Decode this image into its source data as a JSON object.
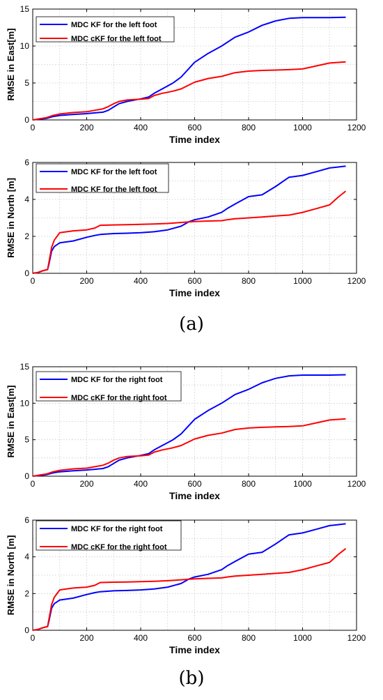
{
  "figure": {
    "panel_labels": [
      "(a)",
      "(b)"
    ]
  },
  "colors": {
    "series_blue": "#0000ff",
    "series_red": "#ff0000",
    "grid": "#c8c8c8",
    "axis": "#000000"
  },
  "chart_data": [
    {
      "type": "line",
      "panel": "(a)",
      "xlabel": "Time index",
      "ylabel": "RMSE in East[m]",
      "xlim": [
        0,
        1200
      ],
      "ylim": [
        0,
        15
      ],
      "xticks": [
        0,
        200,
        400,
        600,
        800,
        1000,
        1200
      ],
      "yticks": [
        0,
        5,
        10,
        15
      ],
      "grid": true,
      "legend_position": "top-left",
      "series": [
        {
          "name": "MDC KF for the left foot",
          "color": "#0000ff",
          "x": [
            0,
            25,
            50,
            75,
            100,
            150,
            200,
            230,
            260,
            280,
            300,
            320,
            350,
            400,
            430,
            450,
            480,
            500,
            520,
            550,
            600,
            650,
            700,
            750,
            800,
            850,
            900,
            950,
            1000,
            1050,
            1100,
            1160
          ],
          "y": [
            0,
            0.1,
            0.2,
            0.45,
            0.6,
            0.75,
            0.85,
            0.95,
            1.05,
            1.3,
            1.75,
            2.2,
            2.5,
            2.85,
            3.1,
            3.6,
            4.2,
            4.6,
            5.0,
            5.8,
            7.8,
            9.0,
            10.0,
            11.2,
            11.9,
            12.8,
            13.4,
            13.75,
            13.85,
            13.85,
            13.85,
            13.9
          ]
        },
        {
          "name": "MDC cKF for the left foot",
          "color": "#ff0000",
          "x": [
            0,
            25,
            50,
            75,
            100,
            150,
            200,
            230,
            260,
            280,
            300,
            320,
            350,
            400,
            430,
            450,
            480,
            500,
            520,
            550,
            600,
            650,
            700,
            750,
            800,
            850,
            900,
            950,
            1000,
            1050,
            1100,
            1160
          ],
          "y": [
            0,
            0.15,
            0.3,
            0.6,
            0.8,
            1.0,
            1.1,
            1.3,
            1.5,
            1.8,
            2.2,
            2.5,
            2.7,
            2.8,
            2.9,
            3.3,
            3.6,
            3.75,
            3.9,
            4.2,
            5.1,
            5.6,
            5.9,
            6.4,
            6.6,
            6.7,
            6.75,
            6.8,
            6.9,
            7.3,
            7.7,
            7.85
          ]
        }
      ]
    },
    {
      "type": "line",
      "panel": "(a)",
      "xlabel": "Time index",
      "ylabel": "RMSE in North [m]",
      "xlim": [
        0,
        1200
      ],
      "ylim": [
        0,
        6
      ],
      "xticks": [
        0,
        200,
        400,
        600,
        800,
        1000,
        1200
      ],
      "yticks": [
        0,
        2,
        4,
        6
      ],
      "grid": true,
      "legend_position": "top-left",
      "series": [
        {
          "name": "MDC KF for the left foot",
          "color": "#0000ff",
          "x": [
            0,
            20,
            40,
            55,
            60,
            70,
            80,
            100,
            150,
            200,
            230,
            250,
            300,
            350,
            400,
            450,
            500,
            550,
            580,
            600,
            650,
            700,
            720,
            750,
            800,
            850,
            900,
            950,
            1000,
            1050,
            1100,
            1130,
            1160
          ],
          "y": [
            0,
            0.05,
            0.15,
            0.2,
            0.5,
            1.2,
            1.45,
            1.65,
            1.75,
            1.95,
            2.05,
            2.1,
            2.15,
            2.17,
            2.2,
            2.25,
            2.35,
            2.55,
            2.8,
            2.9,
            3.05,
            3.3,
            3.5,
            3.75,
            4.15,
            4.25,
            4.7,
            5.2,
            5.3,
            5.5,
            5.7,
            5.75,
            5.8
          ]
        },
        {
          "name": "MDC KF for the left foot",
          "color": "#ff0000",
          "x": [
            0,
            20,
            40,
            55,
            60,
            70,
            80,
            100,
            150,
            200,
            230,
            250,
            300,
            350,
            400,
            450,
            500,
            550,
            580,
            600,
            650,
            700,
            720,
            750,
            800,
            850,
            900,
            950,
            1000,
            1050,
            1100,
            1130,
            1160
          ],
          "y": [
            0,
            0.05,
            0.15,
            0.2,
            0.6,
            1.4,
            1.8,
            2.2,
            2.3,
            2.35,
            2.45,
            2.6,
            2.62,
            2.63,
            2.65,
            2.67,
            2.7,
            2.75,
            2.78,
            2.8,
            2.83,
            2.85,
            2.9,
            2.95,
            3.0,
            3.05,
            3.1,
            3.15,
            3.3,
            3.5,
            3.7,
            4.1,
            4.45
          ]
        }
      ]
    },
    {
      "type": "line",
      "panel": "(b)",
      "xlabel": "Time index",
      "ylabel": "RMSE in East[m]",
      "xlim": [
        0,
        1200
      ],
      "ylim": [
        0,
        15
      ],
      "xticks": [
        0,
        200,
        400,
        600,
        800,
        1000,
        1200
      ],
      "yticks": [
        0,
        5,
        10,
        15
      ],
      "grid": true,
      "legend_position": "top-left",
      "series": [
        {
          "name": "MDC KF for the right foot",
          "color": "#0000ff",
          "x": [
            0,
            25,
            50,
            75,
            100,
            150,
            200,
            230,
            260,
            280,
            300,
            320,
            350,
            400,
            430,
            450,
            480,
            500,
            520,
            550,
            600,
            650,
            700,
            750,
            800,
            850,
            900,
            950,
            1000,
            1050,
            1100,
            1160
          ],
          "y": [
            0,
            0.1,
            0.2,
            0.45,
            0.6,
            0.75,
            0.85,
            0.95,
            1.05,
            1.3,
            1.75,
            2.2,
            2.5,
            2.85,
            3.1,
            3.6,
            4.2,
            4.6,
            5.0,
            5.8,
            7.8,
            9.0,
            10.0,
            11.2,
            11.9,
            12.8,
            13.4,
            13.75,
            13.85,
            13.85,
            13.85,
            13.9
          ]
        },
        {
          "name": "MDC cKF for the right foot",
          "color": "#ff0000",
          "x": [
            0,
            25,
            50,
            75,
            100,
            150,
            200,
            230,
            260,
            280,
            300,
            320,
            350,
            400,
            430,
            450,
            480,
            500,
            520,
            550,
            600,
            650,
            700,
            750,
            800,
            850,
            900,
            950,
            1000,
            1050,
            1100,
            1160
          ],
          "y": [
            0,
            0.15,
            0.3,
            0.6,
            0.8,
            1.0,
            1.1,
            1.3,
            1.5,
            1.8,
            2.2,
            2.5,
            2.7,
            2.8,
            2.9,
            3.3,
            3.6,
            3.75,
            3.9,
            4.2,
            5.1,
            5.6,
            5.9,
            6.4,
            6.6,
            6.7,
            6.75,
            6.8,
            6.9,
            7.3,
            7.7,
            7.85
          ]
        }
      ]
    },
    {
      "type": "line",
      "panel": "(b)",
      "xlabel": "Time index",
      "ylabel": "RMSE in North [m]",
      "xlim": [
        0,
        1200
      ],
      "ylim": [
        0,
        6
      ],
      "xticks": [
        0,
        200,
        400,
        600,
        800,
        1000,
        1200
      ],
      "yticks": [
        0,
        2,
        4,
        6
      ],
      "grid": true,
      "legend_position": "top-left",
      "series": [
        {
          "name": "MDC KF for the right foot",
          "color": "#0000ff",
          "x": [
            0,
            20,
            40,
            55,
            60,
            70,
            80,
            100,
            150,
            200,
            230,
            250,
            300,
            350,
            400,
            450,
            500,
            550,
            580,
            600,
            650,
            700,
            720,
            750,
            800,
            850,
            900,
            950,
            1000,
            1050,
            1100,
            1130,
            1160
          ],
          "y": [
            0,
            0.05,
            0.15,
            0.2,
            0.5,
            1.2,
            1.45,
            1.65,
            1.75,
            1.95,
            2.05,
            2.1,
            2.15,
            2.17,
            2.2,
            2.25,
            2.35,
            2.55,
            2.8,
            2.9,
            3.05,
            3.3,
            3.5,
            3.75,
            4.15,
            4.25,
            4.7,
            5.2,
            5.3,
            5.5,
            5.7,
            5.75,
            5.8
          ]
        },
        {
          "name": "MDC cKF for the right foot",
          "color": "#ff0000",
          "x": [
            0,
            20,
            40,
            55,
            60,
            70,
            80,
            100,
            150,
            200,
            230,
            250,
            300,
            350,
            400,
            450,
            500,
            550,
            580,
            600,
            650,
            700,
            720,
            750,
            800,
            850,
            900,
            950,
            1000,
            1050,
            1100,
            1130,
            1160
          ],
          "y": [
            0,
            0.05,
            0.15,
            0.2,
            0.6,
            1.4,
            1.8,
            2.2,
            2.3,
            2.35,
            2.45,
            2.6,
            2.62,
            2.63,
            2.65,
            2.67,
            2.7,
            2.75,
            2.78,
            2.8,
            2.83,
            2.85,
            2.9,
            2.95,
            3.0,
            3.05,
            3.1,
            3.15,
            3.3,
            3.5,
            3.7,
            4.1,
            4.45
          ]
        }
      ]
    }
  ]
}
